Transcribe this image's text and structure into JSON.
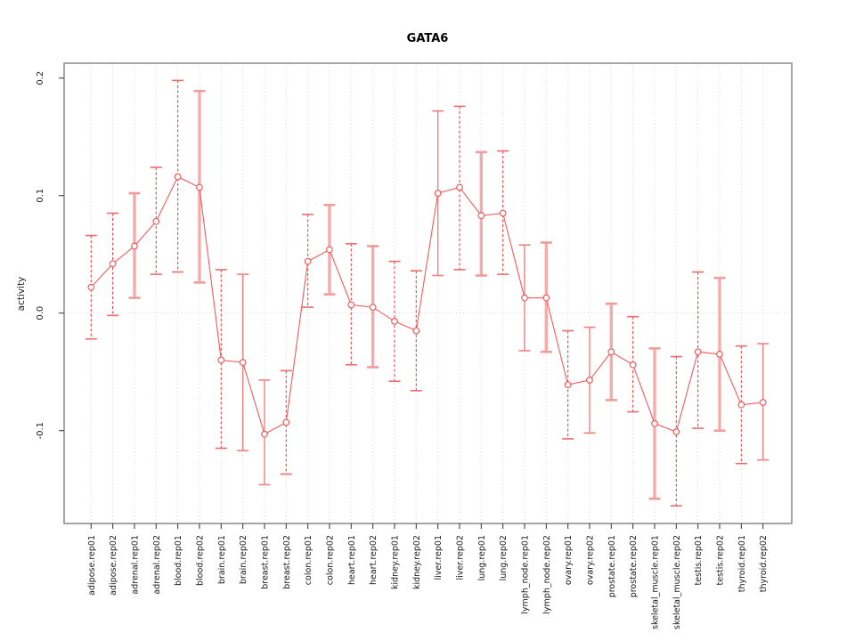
{
  "page": {
    "background": "#ffffff"
  },
  "chart_data": {
    "type": "scatter",
    "title": "GATA6",
    "xlabel": "",
    "ylabel": "activity",
    "legend": "none",
    "grid": {
      "vertical_per_category": "dotted",
      "horizontal": "zero-line-only",
      "zero_line": "dotted"
    },
    "ylim": [
      -0.179,
      0.213
    ],
    "yticks": [
      -0.1,
      0.0,
      0.1,
      0.2
    ],
    "ytick_labels": [
      "-0.1",
      "0.0",
      "0.1",
      "0.2"
    ],
    "categories": [
      "adipose.rep01",
      "adipose.rep02",
      "adrenal.rep01",
      "adrenal.rep02",
      "blood.rep01",
      "blood.rep02",
      "brain.rep01",
      "brain.rep02",
      "breast.rep01",
      "breast.rep02",
      "colon.rep01",
      "colon.rep02",
      "heart.rep01",
      "heart.rep02",
      "kidney.rep01",
      "kidney.rep02",
      "liver.rep01",
      "liver.rep02",
      "lung.rep01",
      "lung.rep02",
      "lymph_node.rep01",
      "lymph_node.rep02",
      "ovary.rep01",
      "ovary.rep02",
      "prostate.rep01",
      "prostate.rep02",
      "skeletal_muscle.rep01",
      "skeletal_muscle.rep02",
      "testis.rep01",
      "testis.rep02",
      "thyroid.rep01",
      "thyroid.rep02"
    ],
    "series": [
      {
        "name": "activity",
        "marker": "open-circle",
        "values": [
          0.022,
          0.042,
          0.057,
          0.078,
          0.116,
          0.107,
          -0.04,
          -0.042,
          -0.103,
          -0.093,
          0.044,
          0.054,
          0.007,
          0.005,
          -0.007,
          -0.015,
          0.102,
          0.107,
          0.083,
          0.085,
          0.013,
          0.013,
          -0.061,
          -0.057,
          -0.033,
          -0.044,
          -0.094,
          -0.101,
          -0.033,
          -0.035,
          -0.078,
          -0.076
        ],
        "error_low": [
          -0.022,
          -0.002,
          0.013,
          0.033,
          0.035,
          0.026,
          -0.115,
          -0.117,
          -0.146,
          -0.137,
          0.005,
          0.016,
          -0.044,
          -0.046,
          -0.058,
          -0.066,
          0.032,
          0.037,
          0.032,
          0.033,
          -0.032,
          -0.033,
          -0.107,
          -0.102,
          -0.074,
          -0.084,
          -0.158,
          -0.164,
          -0.098,
          -0.1,
          -0.128,
          -0.125
        ],
        "error_high": [
          0.066,
          0.085,
          0.102,
          0.124,
          0.198,
          0.189,
          0.037,
          0.033,
          -0.057,
          -0.049,
          0.084,
          0.092,
          0.059,
          0.057,
          0.044,
          0.036,
          0.172,
          0.176,
          0.137,
          0.138,
          0.058,
          0.06,
          -0.015,
          -0.012,
          0.008,
          -0.003,
          -0.03,
          -0.037,
          0.035,
          0.03,
          -0.028,
          -0.026
        ],
        "bar_styles": [
          "dashed",
          "dashed",
          "thick",
          "dashed",
          "dashed",
          "thick",
          "dashed",
          "solid",
          "solid",
          "dashed",
          "dashed",
          "thick",
          "dashed",
          "thick",
          "dashed",
          "dashed",
          "solid",
          "dashed",
          "thick",
          "dashed",
          "solid",
          "thick",
          "dashed",
          "solid",
          "thick",
          "dashed",
          "thick",
          "dashed",
          "dashed",
          "thick",
          "dashed",
          "solid"
        ]
      }
    ],
    "colors": {
      "line": "#ef5b5b",
      "marker": "#ef5b5b",
      "error_dashed": "#e64545",
      "error_solid": "#f08080",
      "error_thick": "#f6abab",
      "cap_dashed": "#ee6b6b",
      "cap_solid": "#f08080",
      "cap_thick": "#f29b9b",
      "grid": "#d6d6d6",
      "box": "#8f8f8f",
      "tick": "#404040",
      "text": "#1a1a1a"
    }
  }
}
